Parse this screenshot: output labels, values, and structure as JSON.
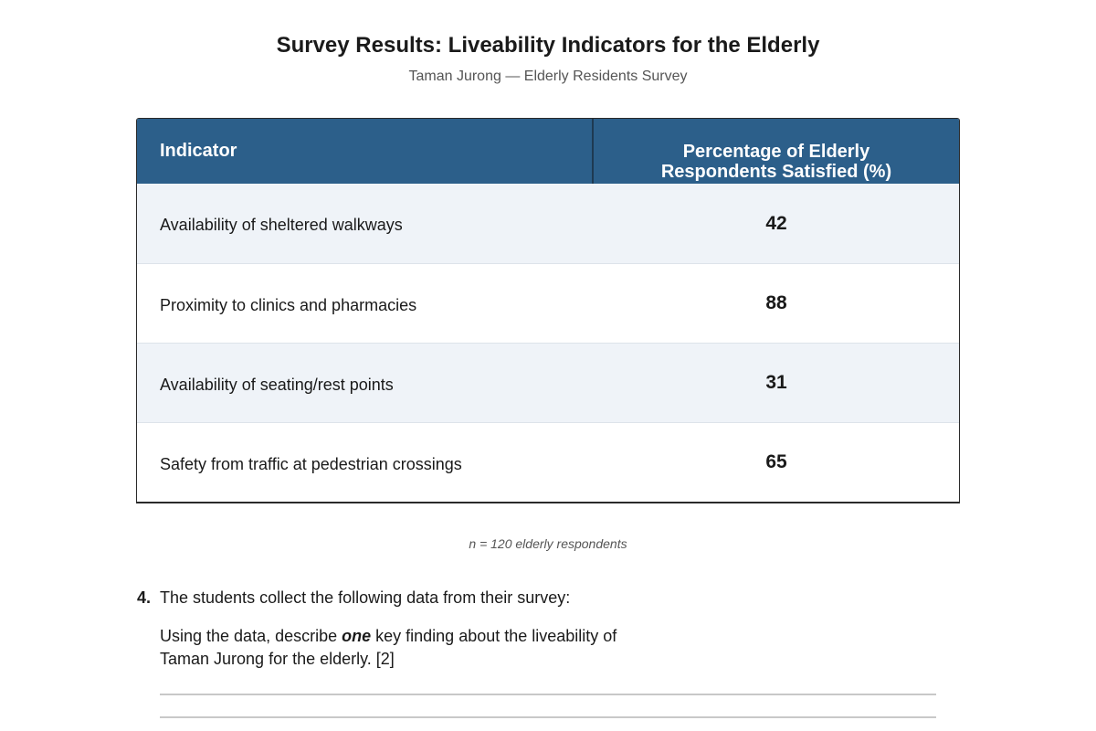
{
  "title": "Survey Results: Liveability Indicators for the Elderly",
  "subtitle": "Taman Jurong — Elderly Residents Survey",
  "table": {
    "headers": {
      "indicator": "Indicator",
      "percent_line1": "Percentage of Elderly",
      "percent_line2": "Respondents Satisfied (%)"
    },
    "rows": [
      {
        "indicator": "Availability of sheltered walkways",
        "value": "42"
      },
      {
        "indicator": "Proximity to clinics and pharmacies",
        "value": "88"
      },
      {
        "indicator": "Availability of seating/rest points",
        "value": "31"
      },
      {
        "indicator": "Safety from traffic at pedestrian crossings",
        "value": "65"
      }
    ]
  },
  "note": "n = 120 elderly respondents",
  "question": {
    "number": "4.",
    "stem": "The students collect the following data from their survey:",
    "prompt_before": "Using the data, describe ",
    "prompt_emphasis": "one",
    "prompt_after": " key finding about the liveability of",
    "prompt_line2": "Taman Jurong for the elderly. [2]"
  },
  "colors": {
    "header_bg": "#2c5f8a",
    "alt_row_bg": "#eff3f8"
  }
}
